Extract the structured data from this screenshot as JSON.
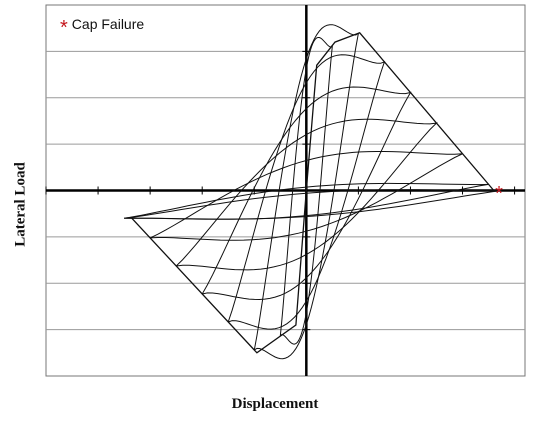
{
  "chart_data": {
    "type": "line",
    "title": "",
    "xlabel": "Displacement",
    "ylabel": "Lateral Load",
    "xlim": [
      -10,
      8.4
    ],
    "ylim": [
      -4,
      4
    ],
    "grid": true,
    "legend": {
      "placement": "top-left",
      "entries": [
        {
          "marker": "*",
          "label": "Cap Failure",
          "color": "#c4161c"
        }
      ]
    },
    "colors": {
      "line": "#111111",
      "grid": "#9a9a9a",
      "axis": "#000000",
      "marker": "#c4161c"
    },
    "cycle_amplitudes": [
      1,
      2,
      3,
      4,
      5,
      6,
      7,
      7.5
    ],
    "envelope": {
      "positive": [
        [
          0,
          0
        ],
        [
          0.4,
          2.7
        ],
        [
          1.1,
          3.2
        ],
        [
          2.05,
          3.4
        ],
        [
          7.2,
          0
        ]
      ],
      "negative": [
        [
          0,
          0
        ],
        [
          -0.4,
          -2.9
        ],
        [
          -1.9,
          -3.5
        ],
        [
          -6.7,
          -0.6
        ]
      ]
    },
    "failure_point": {
      "x": 7.4,
      "y": -0.05,
      "label": "Cap Failure"
    }
  }
}
